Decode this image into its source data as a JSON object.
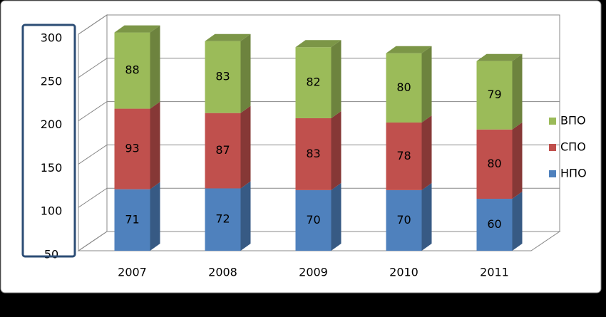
{
  "chart_data": {
    "type": "bar3d_stacked",
    "categories": [
      "2007",
      "2008",
      "2009",
      "2010",
      "2011"
    ],
    "series": [
      {
        "name": "НПО",
        "color": "#4f81bd",
        "values": [
          71,
          72,
          70,
          70,
          60
        ]
      },
      {
        "name": "СПО",
        "color": "#c0504d",
        "values": [
          93,
          87,
          83,
          78,
          80
        ]
      },
      {
        "name": "ВПО",
        "color": "#9bbb59",
        "values": [
          88,
          83,
          82,
          80,
          79
        ]
      }
    ],
    "ylim": [
      50,
      300
    ],
    "yticks": [
      50,
      100,
      150,
      200,
      250,
      300
    ],
    "grid": true,
    "legend": "right"
  }
}
